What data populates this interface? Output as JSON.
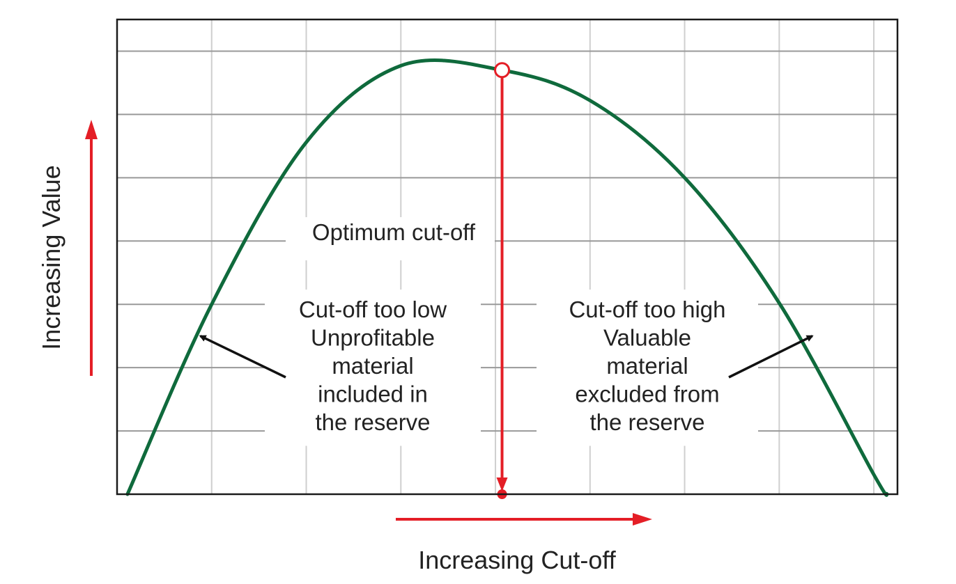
{
  "chart_data": {
    "type": "line",
    "title": "",
    "xlabel": "Increasing Cut-off",
    "ylabel": "Increasing Value",
    "xlim": [
      0,
      8.25
    ],
    "ylim": [
      0,
      7.5
    ],
    "grid": true,
    "x_ticks_count": 8,
    "y_ticks_count": 7,
    "series": [
      {
        "color": "#0f6a3c",
        "shape": "inverted-parabola",
        "x": [
          0.11,
          1.0,
          2.0,
          3.0,
          4.07,
          5.0,
          6.0,
          7.0,
          8.0,
          8.14
        ],
        "y": [
          0.0,
          3.0,
          5.56,
          6.77,
          6.7,
          6.22,
          5.0,
          3.02,
          0.31,
          0.0
        ]
      }
    ],
    "optimum": {
      "x": 4.07,
      "y": 6.7,
      "label": "Optimum cut-off",
      "color": "#e41e26"
    },
    "annotations": [
      {
        "lines": [
          "Cut-off too low",
          "Unprofitable",
          "material",
          "included in",
          "the reserve"
        ],
        "arrow_target": {
          "x": 0.88,
          "y": 2.5
        }
      },
      {
        "lines": [
          "Cut-off too high",
          "Valuable",
          "material",
          "excluded from",
          "the reserve"
        ],
        "arrow_target": {
          "x": 7.35,
          "y": 2.5
        }
      }
    ],
    "axis_arrow_color": "#e41e26"
  }
}
